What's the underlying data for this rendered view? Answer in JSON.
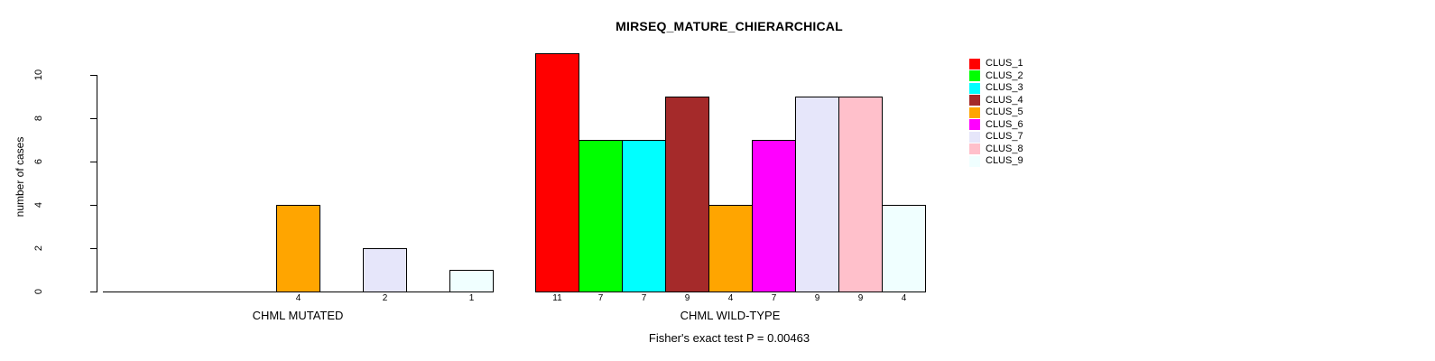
{
  "chart_data": {
    "type": "bar",
    "title": "MIRSEQ_MATURE_CHIERARCHICAL",
    "ylabel": "number of cases",
    "xlabel": "",
    "ylim": [
      0,
      10
    ],
    "yticks": [
      0,
      2,
      4,
      6,
      8,
      10
    ],
    "grid": false,
    "legend_position": "topright",
    "categories": [
      "CLUS_1",
      "CLUS_2",
      "CLUS_3",
      "CLUS_4",
      "CLUS_5",
      "CLUS_6",
      "CLUS_7",
      "CLUS_8",
      "CLUS_9"
    ],
    "series_colors": [
      "#FF0000",
      "#00FF00",
      "#00FFFF",
      "#A52A2A",
      "#FFA500",
      "#FF00FF",
      "#E6E6FA",
      "#FFC0CB",
      "#F0FFFF"
    ],
    "groups": [
      {
        "label": "CHML MUTATED",
        "values": [
          0,
          0,
          0,
          0,
          4,
          0,
          2,
          0,
          1
        ]
      },
      {
        "label": "CHML WILD-TYPE",
        "values": [
          11,
          7,
          7,
          9,
          4,
          7,
          9,
          9,
          4
        ]
      }
    ],
    "bar_value_labels_note": "value printed below each nonzero bar",
    "annotation": "Fisher's exact test P = 0.00463"
  },
  "legend": {
    "entries": [
      {
        "label": "CLUS_1",
        "color": "#FF0000"
      },
      {
        "label": "CLUS_2",
        "color": "#00FF00"
      },
      {
        "label": "CLUS_3",
        "color": "#00FFFF"
      },
      {
        "label": "CLUS_4",
        "color": "#A52A2A"
      },
      {
        "label": "CLUS_5",
        "color": "#FFA500"
      },
      {
        "label": "CLUS_6",
        "color": "#FF00FF"
      },
      {
        "label": "CLUS_7",
        "color": "#E6E6FA"
      },
      {
        "label": "CLUS_8",
        "color": "#FFC0CB"
      },
      {
        "label": "CLUS_9",
        "color": "#F0FFFF"
      }
    ]
  }
}
